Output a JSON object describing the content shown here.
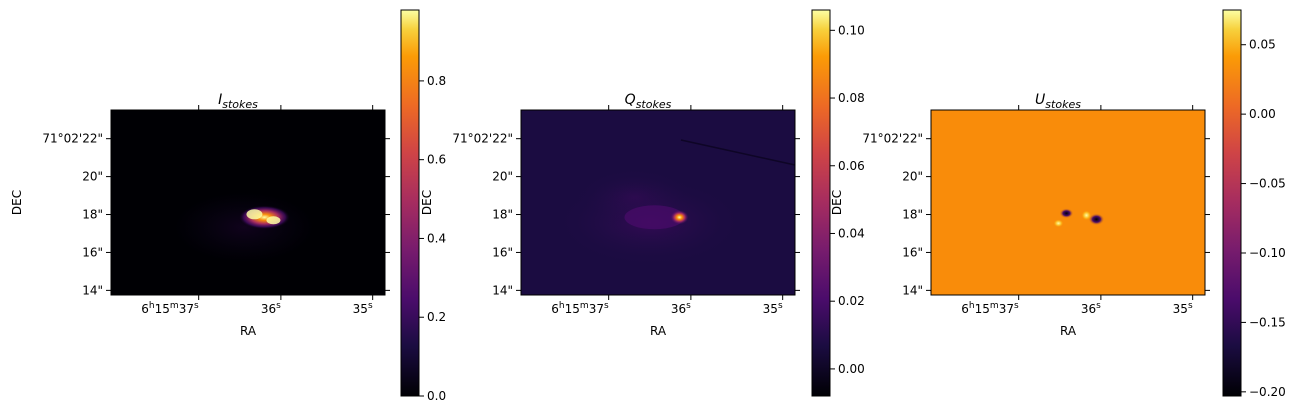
{
  "chart_data": [
    {
      "type": "heatmap",
      "title": "I",
      "title_subscript": "stokes",
      "xlabel": "RA",
      "ylabel": "DEC",
      "x_ticks": [
        {
          "label_h": "6",
          "label_m": "15",
          "label_s": "37",
          "kind": "hms"
        },
        {
          "label_s": "36",
          "kind": "s"
        },
        {
          "label_s": "35",
          "kind": "s"
        }
      ],
      "y_ticks": [
        "71°02'22\"",
        "20\"",
        "18\"",
        "16\"",
        "14\""
      ],
      "colormap": "inferno",
      "background_color": "#000004",
      "colorbar": {
        "min": 0.0,
        "max": 0.98,
        "ticks": [
          "0.0",
          "0.2",
          "0.4",
          "0.6",
          "0.8"
        ],
        "tick_values": [
          0.0,
          0.2,
          0.4,
          0.6,
          0.8
        ]
      },
      "features": "compact bright emission near image center at DEC ~18\", RA ~36.2s, peaking near 1.0"
    },
    {
      "type": "heatmap",
      "title": "Q",
      "title_subscript": "stokes",
      "xlabel": "RA",
      "ylabel": "DEC",
      "x_ticks": [
        {
          "label_h": "6",
          "label_m": "15",
          "label_s": "37",
          "kind": "hms"
        },
        {
          "label_s": "36",
          "kind": "s"
        },
        {
          "label_s": "35",
          "kind": "s"
        }
      ],
      "y_ticks": [
        "71°02'22\"",
        "20\"",
        "18\"",
        "16\"",
        "14\""
      ],
      "colormap": "inferno",
      "background_color": "#1b0c41",
      "colorbar": {
        "min": -0.008,
        "max": 0.106,
        "ticks": [
          "0.00",
          "0.02",
          "0.04",
          "0.06",
          "0.08",
          "0.10"
        ],
        "tick_values": [
          0.0,
          0.02,
          0.04,
          0.06,
          0.08,
          0.1
        ]
      },
      "features": "faint extended purple emission with compact bright peak near DEC ~17.5\", RA ~36.1s"
    },
    {
      "type": "heatmap",
      "title": "U",
      "title_subscript": "stokes",
      "xlabel": "RA",
      "ylabel": "DEC",
      "x_ticks": [
        {
          "label_h": "6",
          "label_m": "15",
          "label_s": "37",
          "kind": "hms"
        },
        {
          "label_s": "36",
          "kind": "s"
        },
        {
          "label_s": "35",
          "kind": "s"
        }
      ],
      "y_ticks": [
        "71°02'22\"",
        "20\"",
        "18\"",
        "16\"",
        "14\""
      ],
      "colormap": "inferno",
      "background_color": "#f98c0a",
      "colorbar": {
        "min": -0.203,
        "max": 0.075,
        "ticks": [
          "−0.20",
          "−0.15",
          "−0.10",
          "−0.05",
          "0.00",
          "0.05"
        ],
        "tick_values": [
          -0.2,
          -0.15,
          -0.1,
          -0.05,
          0.0,
          0.05
        ]
      },
      "features": "uniform orange field near 0 with small dark (negative) and bright (positive) knots near center"
    }
  ]
}
